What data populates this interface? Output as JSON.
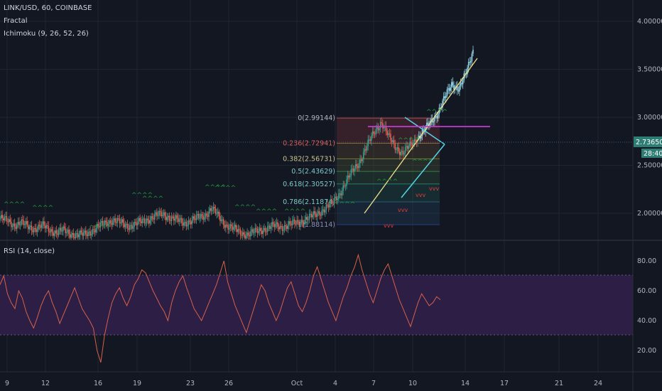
{
  "legend": {
    "symbol": "LINK/USD, 60, COINBASE",
    "indicator1": "Fractal",
    "indicator2": "Ichimoku (9, 26, 52, 26)",
    "rsi": "RSI (14, close)"
  },
  "colors": {
    "background": "#131722",
    "grid": "#1f2433",
    "up": "#3d9a8b",
    "down": "#e25c4f",
    "rsi_line": "#d6614a",
    "rsi_band": "#2c1e44",
    "fractal_up": "#1f9c3a",
    "fractal_down": "#e03b3b",
    "trend_yellow": "#f2e08a",
    "trend_cyan": "#54d3e6",
    "level_magenta": "#c63ad1",
    "price_tag": "#2e7d74"
  },
  "chart_data": [
    {
      "type": "candlestick",
      "price_axis_labels": [
        "4.00000",
        "3.50000",
        "3.00000",
        "2.50000",
        "2.00000"
      ],
      "price_axis_values": [
        4.0,
        3.5,
        3.0,
        2.5,
        2.0
      ],
      "current_price": "2.73650",
      "countdown": "28:40",
      "date_axis_labels": [
        "9",
        "12",
        "16",
        "19",
        "23",
        "26",
        "Oct",
        "4",
        "7",
        "10",
        "14",
        "17",
        "21",
        "24"
      ],
      "fibonacci": [
        {
          "label": "0(2.99144)",
          "value": 2.99144
        },
        {
          "label": "0.236(2.72941)",
          "value": 2.72941
        },
        {
          "label": "0.382(2.56731)",
          "value": 2.56731
        },
        {
          "label": "0.5(2.43629)",
          "value": 2.43629
        },
        {
          "label": "0.618(2.30527)",
          "value": 2.30527
        },
        {
          "label": "0.786(2.11874)",
          "value": 2.11874
        },
        {
          "label": "1(1.88114)",
          "value": 1.88114
        }
      ],
      "close_series": [
        1.95,
        1.92,
        1.88,
        1.9,
        1.86,
        1.84,
        1.87,
        1.83,
        1.8,
        1.82,
        1.79,
        1.77,
        1.78,
        1.82,
        1.86,
        1.9,
        1.93,
        1.9,
        1.87,
        1.88,
        1.91,
        1.94,
        1.97,
        1.99,
        1.96,
        1.93,
        1.9,
        1.92,
        1.95,
        1.98,
        2.05,
        1.96,
        1.88,
        1.84,
        1.8,
        1.78,
        1.8,
        1.83,
        1.85,
        1.87,
        1.86,
        1.88,
        1.9,
        1.93,
        1.96,
        2.0,
        2.05,
        2.1,
        2.2,
        2.32,
        2.45,
        2.55,
        2.7,
        2.85,
        2.95,
        2.8,
        2.7,
        2.62,
        2.7,
        2.78,
        2.85,
        2.95,
        3.05,
        3.2,
        3.35,
        3.3,
        3.45,
        3.7
      ]
    },
    {
      "type": "line",
      "name": "RSI (14, close)",
      "rsi_axis_labels": [
        "80.00",
        "60.00",
        "40.00",
        "20.00"
      ],
      "rsi_axis_values": [
        80,
        60,
        40,
        20
      ],
      "band": [
        30,
        70
      ],
      "values": [
        64,
        70,
        58,
        52,
        48,
        60,
        55,
        46,
        40,
        35,
        42,
        50,
        56,
        60,
        52,
        46,
        38,
        44,
        50,
        56,
        62,
        55,
        48,
        44,
        40,
        35,
        20,
        12,
        30,
        42,
        52,
        58,
        62,
        55,
        50,
        56,
        64,
        68,
        74,
        72,
        66,
        60,
        55,
        50,
        46,
        40,
        52,
        60,
        66,
        70,
        62,
        55,
        48,
        44,
        40,
        46,
        52,
        58,
        64,
        72,
        80,
        66,
        58,
        50,
        44,
        38,
        32,
        40,
        48,
        56,
        64,
        60,
        52,
        46,
        40,
        46,
        54,
        62,
        66,
        58,
        50,
        46,
        52,
        60,
        70,
        76,
        68,
        60,
        52,
        46,
        40,
        48,
        56,
        62,
        70,
        76,
        84,
        74,
        66,
        58,
        52,
        60,
        68,
        74,
        78,
        70,
        62,
        54,
        48,
        42,
        36,
        44,
        52,
        58,
        54,
        50,
        52,
        56,
        54
      ]
    }
  ]
}
